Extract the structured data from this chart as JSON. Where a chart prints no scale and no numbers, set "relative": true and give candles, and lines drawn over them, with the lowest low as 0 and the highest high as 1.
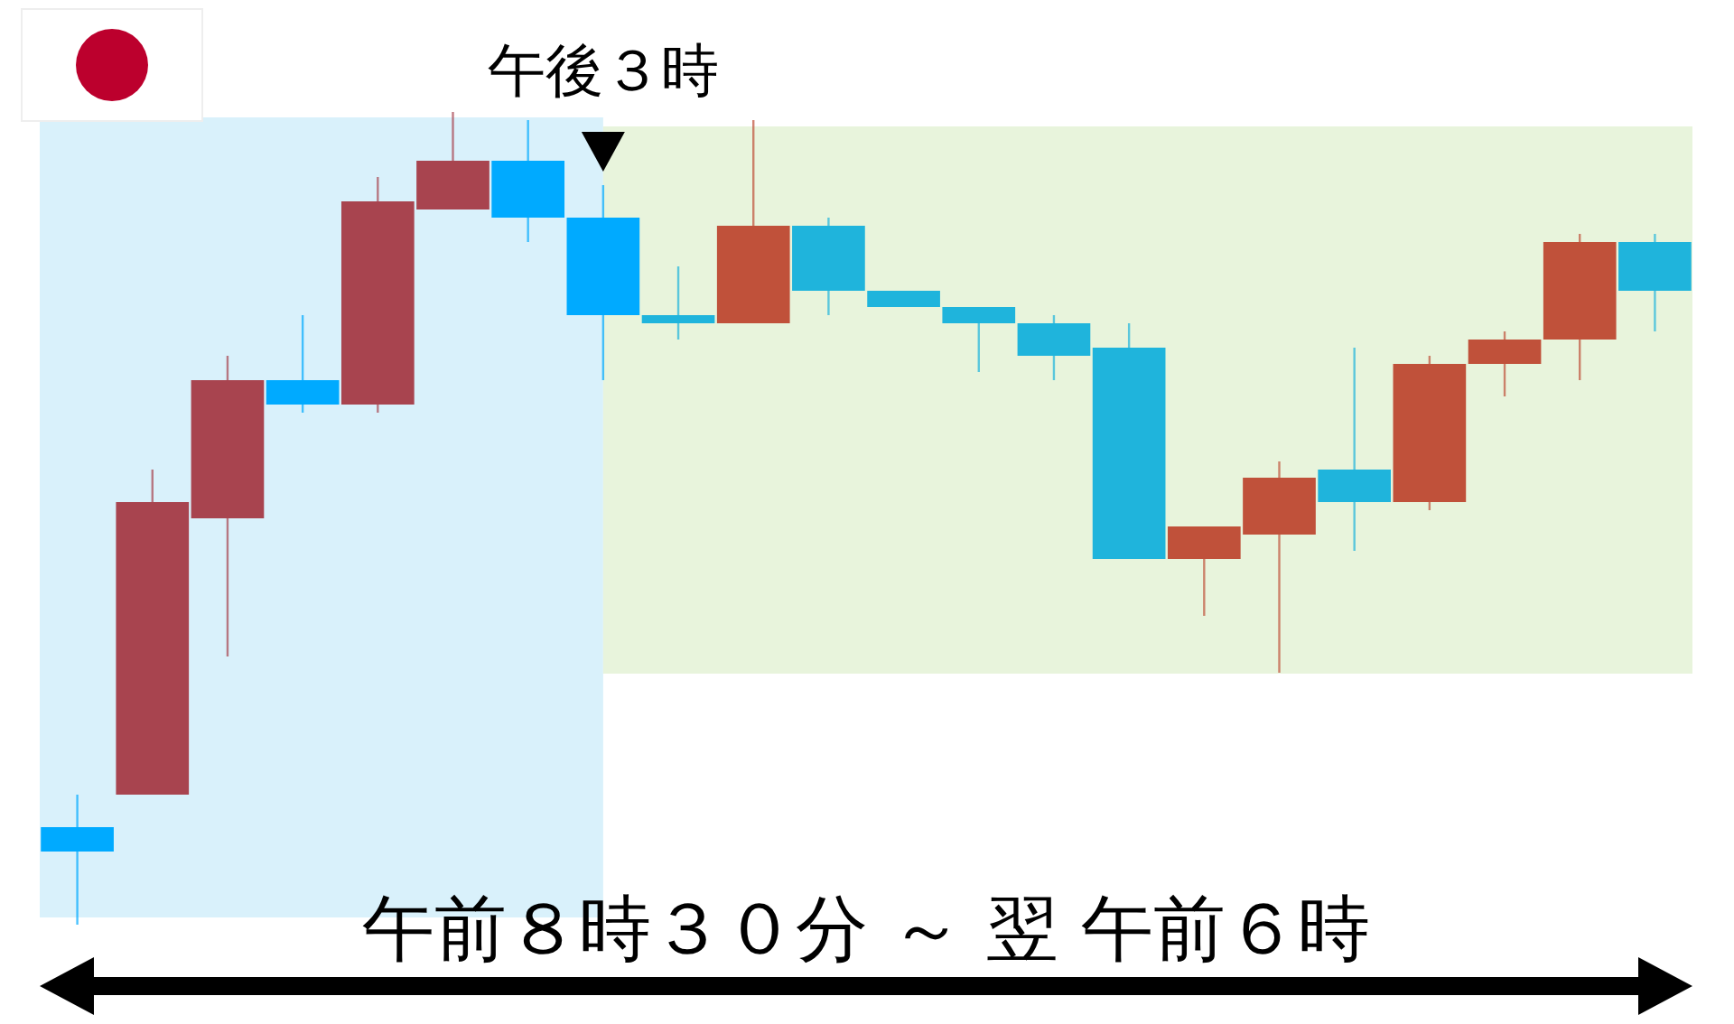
{
  "chart_data": {
    "type": "candlestick",
    "relative": true,
    "categories": [
      null,
      null,
      null,
      null,
      null,
      null,
      null,
      null,
      null,
      null,
      null,
      null,
      null,
      null,
      null,
      null,
      null,
      null,
      null,
      null,
      null,
      null
    ],
    "ohlc": [
      [
        0.12,
        0.16,
        0,
        0.09
      ],
      [
        0.16,
        0.56,
        0.16,
        0.52
      ],
      [
        0.5,
        0.7,
        0.33,
        0.67
      ],
      [
        0.67,
        0.75,
        0.63,
        0.64
      ],
      [
        0.64,
        0.92,
        0.63,
        0.89
      ],
      [
        0.88,
        1,
        0.88,
        0.94
      ],
      [
        0.94,
        0.99,
        0.84,
        0.87
      ],
      [
        0.87,
        0.91,
        0.67,
        0.75
      ],
      [
        0.75,
        0.81,
        0.72,
        0.74
      ],
      [
        0.74,
        0.99,
        0.74,
        0.86
      ],
      [
        0.86,
        0.87,
        0.75,
        0.78
      ],
      [
        0.78,
        0.78,
        0.76,
        0.76
      ],
      [
        0.76,
        0.76,
        0.68,
        0.74
      ],
      [
        0.74,
        0.75,
        0.67,
        0.7
      ],
      [
        0.71,
        0.74,
        0.45,
        0.45
      ],
      [
        0.45,
        0.49,
        0.38,
        0.49
      ],
      [
        0.48,
        0.57,
        0.31,
        0.55
      ],
      [
        0.56,
        0.71,
        0.46,
        0.52
      ],
      [
        0.52,
        0.7,
        0.51,
        0.69
      ],
      [
        0.69,
        0.73,
        0.65,
        0.72
      ],
      [
        0.72,
        0.85,
        0.67,
        0.84
      ],
      [
        0.84,
        0.85,
        0.73,
        0.78
      ]
    ],
    "colors": [
      "#00aaff",
      "#a8444f",
      "#a8444f",
      "#00aaff",
      "#a8444f",
      "#a8444f",
      "#00aaff",
      "#00aaff",
      "#1fb4dc",
      "#c0513a",
      "#1fb4dc",
      "#1fb4dc",
      "#1fb4dc",
      "#1fb4dc",
      "#1fb4dc",
      "#c0513a",
      "#c0513a",
      "#1fb4dc",
      "#c0513a",
      "#c0513a",
      "#c0513a",
      "#1fb4dc"
    ],
    "annotations": [
      "午後３時",
      "午前８時３０分 ～ 翌 午前６時"
    ]
  }
}
